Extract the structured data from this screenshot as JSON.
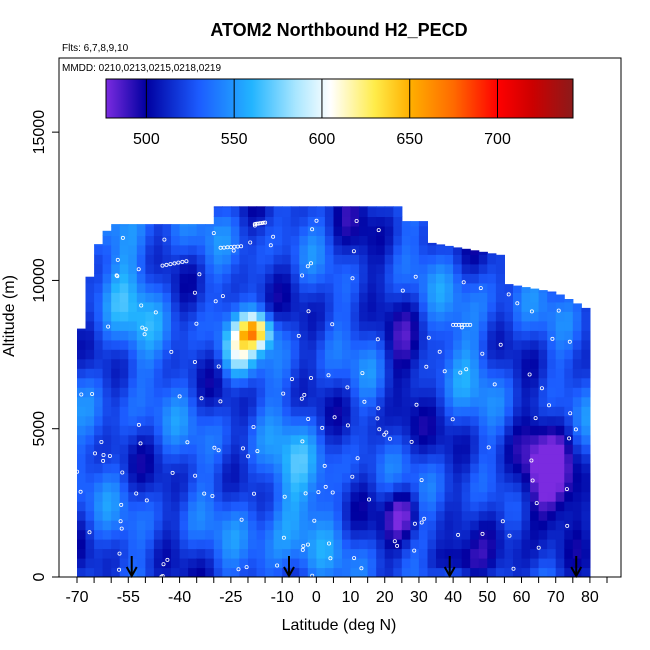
{
  "chart_data": {
    "type": "heatmap",
    "title": "ATOM2 Northbound H2_PECD",
    "flights_text": "Flts: 6,7,8,9,10",
    "mmdd_text": "MMDD: 0210,0213,0215,0218,0219",
    "xlabel": "Latitude (deg N)",
    "ylabel": "Altitude (m)",
    "xlim": [
      -70,
      85
    ],
    "ylim": [
      0,
      17500
    ],
    "x_ticks": [
      -70,
      -65,
      -60,
      -55,
      -50,
      -45,
      -40,
      -35,
      -30,
      -25,
      -20,
      -15,
      -10,
      -5,
      0,
      5,
      10,
      15,
      20,
      25,
      30,
      35,
      40,
      45,
      50,
      55,
      60,
      65,
      70,
      75,
      80,
      85
    ],
    "x_tick_labels": [
      "-70",
      "-55",
      "-40",
      "-25",
      "-10",
      "0",
      "10",
      "20",
      "30",
      "40",
      "50",
      "60",
      "70",
      "80"
    ],
    "y_ticks": [
      0,
      5000,
      10000,
      15000
    ],
    "y_tick_labels": [
      "0",
      "5000",
      "10000",
      "15000"
    ],
    "colorbar": {
      "range": [
        477,
        743
      ],
      "ticks": [
        500,
        550,
        600,
        650,
        700
      ],
      "tick_labels": [
        "500",
        "550",
        "600",
        "650",
        "700"
      ],
      "stops": [
        {
          "value": 477,
          "color": "#7b2be0"
        },
        {
          "value": 500,
          "color": "#0000a0"
        },
        {
          "value": 530,
          "color": "#1c5cff"
        },
        {
          "value": 560,
          "color": "#22b4ff"
        },
        {
          "value": 585,
          "color": "#a8e6ff"
        },
        {
          "value": 605,
          "color": "#ffffff"
        },
        {
          "value": 630,
          "color": "#ffec4a"
        },
        {
          "value": 650,
          "color": "#ffb000"
        },
        {
          "value": 675,
          "color": "#ff6a00"
        },
        {
          "value": 700,
          "color": "#ff0000"
        },
        {
          "value": 720,
          "color": "#cc0000"
        },
        {
          "value": 743,
          "color": "#8c1a1a"
        }
      ]
    },
    "arrows_at_latitude": [
      -54,
      -8,
      39,
      76
    ],
    "colors": {
      "background": "#ffffff",
      "marker": "#ffffff",
      "axis": "#000000"
    }
  }
}
